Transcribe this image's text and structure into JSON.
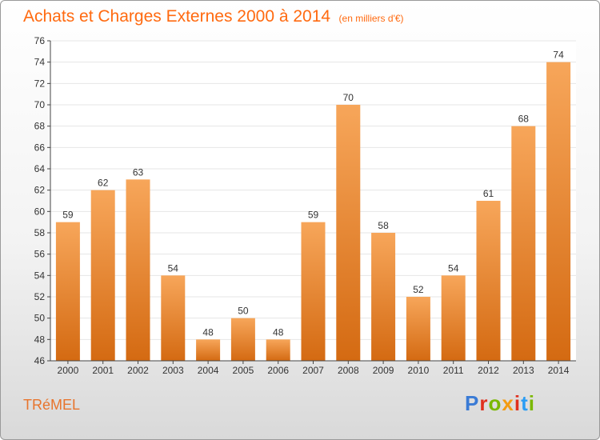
{
  "header": {
    "title": "Achats et Charges Externes 2000 à 2014",
    "subtitle": "(en milliers d'€)"
  },
  "footer": {
    "commune": "TRéMEL",
    "brand": "Proxiti",
    "brand_colors": [
      "#3a7bd5",
      "#e0301e",
      "#7ab800",
      "#f39c12",
      "#e0301e",
      "#2a9df4",
      "#7ab800"
    ]
  },
  "colors": {
    "bar_top": "#f7a65a",
    "bar_bottom": "#d46a12",
    "grid": "#e6e6e6",
    "axis": "#444444",
    "text": "#333333",
    "title": "#ff6a10"
  },
  "chart_data": {
    "type": "bar",
    "categories": [
      "2000",
      "2001",
      "2002",
      "2003",
      "2004",
      "2005",
      "2006",
      "2007",
      "2008",
      "2009",
      "2010",
      "2011",
      "2012",
      "2013",
      "2014"
    ],
    "values": [
      59,
      62,
      63,
      54,
      48,
      50,
      48,
      59,
      70,
      58,
      52,
      54,
      61,
      68,
      74
    ],
    "ylim": [
      46,
      76
    ],
    "yticks": [
      46,
      48,
      50,
      52,
      54,
      56,
      58,
      60,
      62,
      64,
      66,
      68,
      70,
      72,
      74,
      76
    ],
    "grid": true,
    "data_labels": true
  }
}
